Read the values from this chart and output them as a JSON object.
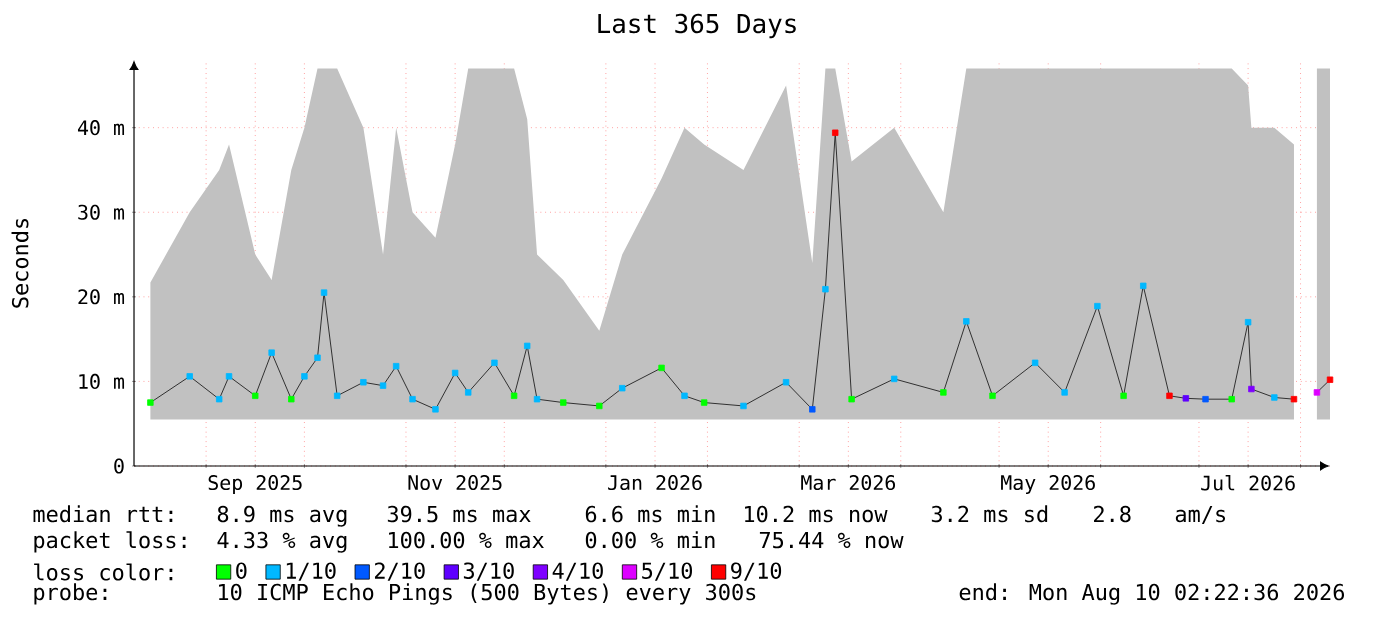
{
  "chart_data": {
    "type": "line",
    "title": "Last 365 Days",
    "ylabel": "Seconds",
    "x": [
      "2025-08-15",
      "2025-08-27",
      "2025-09-05",
      "2025-09-08",
      "2025-09-16",
      "2025-09-21",
      "2025-09-27",
      "2025-10-01",
      "2025-10-05",
      "2025-10-07",
      "2025-10-11",
      "2025-10-19",
      "2025-10-25",
      "2025-10-29",
      "2025-11-03",
      "2025-11-10",
      "2025-11-16",
      "2025-11-20",
      "2025-11-28",
      "2025-12-04",
      "2025-12-08",
      "2025-12-11",
      "2025-12-19",
      "2025-12-30",
      "2026-01-06",
      "2026-01-18",
      "2026-01-25",
      "2026-01-31",
      "2026-02-12",
      "2026-02-25",
      "2026-03-05",
      "2026-03-09",
      "2026-03-12",
      "2026-03-17",
      "2026-03-30",
      "2026-04-14",
      "2026-04-21",
      "2026-04-29",
      "2026-05-12",
      "2026-05-21",
      "2026-05-31",
      "2026-06-08",
      "2026-06-14",
      "2026-06-22",
      "2026-06-27",
      "2026-07-03",
      "2026-07-11",
      "2026-07-16",
      "2026-07-17",
      "2026-07-24",
      "2026-07-30",
      "2026-08-02",
      "2026-08-06",
      "2026-08-10"
    ],
    "series": [
      {
        "color": "#303030",
        "values": [
          7.5,
          10.6,
          7.9,
          10.6,
          8.3,
          13.4,
          7.9,
          10.6,
          12.8,
          20.5,
          8.3,
          9.9,
          9.5,
          11.8,
          7.9,
          6.7,
          11,
          8.7,
          12.2,
          8.3,
          14.2,
          7.9,
          7.5,
          7.1,
          9.2,
          11.6,
          8.3,
          7.5,
          7.1,
          9.9,
          6.7,
          20.9,
          39.4,
          7.9,
          10.3,
          8.7,
          17.1,
          8.3,
          12.2,
          8.7,
          18.9,
          8.3,
          21.3,
          8.3,
          8,
          7.9,
          7.9,
          17,
          9.1,
          8.1,
          7.9,
          null,
          8.7,
          10.2
        ],
        "lower": [
          5.5,
          5.5,
          5.5,
          5.5,
          5.5,
          5.5,
          5.5,
          5.5,
          5.5,
          5.5,
          5.5,
          5.5,
          5.5,
          5.5,
          5.5,
          5.5,
          5.5,
          5.5,
          5.5,
          5.5,
          5.5,
          5.5,
          5.5,
          5.5,
          5.5,
          5.5,
          5.5,
          5.5,
          5.5,
          5.5,
          5.5,
          5.5,
          5.5,
          5.5,
          5.5,
          5.5,
          5.5,
          5.5,
          5.5,
          5.5,
          5.5,
          5.5,
          5.5,
          5.5,
          5.5,
          5.5,
          5.5,
          5.5,
          5.5,
          5.5,
          5.5,
          null,
          5.5,
          5.5
        ],
        "upper": [
          21.7,
          30,
          35,
          38,
          25,
          22,
          35,
          40,
          47,
          47,
          47,
          40,
          25,
          40,
          30,
          27,
          38,
          47,
          47,
          47,
          41,
          25,
          22,
          16,
          25,
          34,
          40,
          38,
          35,
          45,
          24,
          47,
          47,
          36,
          40,
          30,
          47,
          47,
          47,
          47,
          47,
          47,
          47,
          47,
          47,
          47,
          47,
          45,
          40,
          40,
          38,
          null,
          47,
          47
        ]
      },
      {
        "type": "scatter",
        "marker": "square",
        "name": "0",
        "color": "#00ff00",
        "x": [
          "2025-08-15",
          "2025-09-16",
          "2025-09-27",
          "2025-12-04",
          "2025-12-19",
          "2025-12-30",
          "2026-01-18",
          "2026-01-31",
          "2026-03-17",
          "2026-04-14",
          "2026-04-29",
          "2026-06-08",
          "2026-07-11"
        ],
        "values": [
          7.5,
          8.3,
          7.9,
          8.3,
          7.5,
          7.1,
          11.6,
          7.5,
          7.9,
          8.7,
          8.3,
          8.3,
          7.9
        ]
      },
      {
        "type": "scatter",
        "marker": "square",
        "name": "1/10",
        "color": "#00b8ff",
        "x": [
          "2025-08-27",
          "2025-09-05",
          "2025-09-08",
          "2025-09-21",
          "2025-10-01",
          "2025-10-05",
          "2025-10-07",
          "2025-10-11",
          "2025-10-19",
          "2025-10-25",
          "2025-10-29",
          "2025-11-03",
          "2025-11-10",
          "2025-11-16",
          "2025-11-20",
          "2025-11-28",
          "2025-12-08",
          "2025-12-11",
          "2026-01-06",
          "2026-01-25",
          "2026-02-12",
          "2026-02-25",
          "2026-03-09",
          "2026-03-30",
          "2026-04-21",
          "2026-05-12",
          "2026-05-21",
          "2026-05-31",
          "2026-06-14",
          "2026-07-16",
          "2026-07-24"
        ],
        "values": [
          10.6,
          7.9,
          10.6,
          13.4,
          10.6,
          12.8,
          20.5,
          8.3,
          9.9,
          9.5,
          11.8,
          7.9,
          6.7,
          11,
          8.7,
          12.2,
          14.2,
          7.9,
          9.2,
          8.3,
          7.1,
          9.9,
          20.9,
          10.3,
          17.1,
          12.2,
          8.7,
          18.9,
          21.3,
          17,
          8.1
        ]
      },
      {
        "type": "scatter",
        "marker": "square",
        "name": "2/10",
        "color": "#0059ff",
        "x": [
          "2026-03-05",
          "2026-07-03"
        ],
        "values": [
          6.7,
          7.9
        ]
      },
      {
        "type": "scatter",
        "marker": "square",
        "name": "3/10",
        "color": "#5e00ff",
        "x": [
          "2026-06-27"
        ],
        "values": [
          8
        ]
      },
      {
        "type": "scatter",
        "marker": "square",
        "name": "4/10",
        "color": "#7e00ff",
        "x": [
          "2026-07-17"
        ],
        "values": [
          9.1
        ]
      },
      {
        "type": "scatter",
        "marker": "square",
        "name": "5/10",
        "color": "#dd00ff",
        "x": [
          "2026-08-06"
        ],
        "values": [
          8.7
        ]
      },
      {
        "type": "scatter",
        "marker": "square",
        "name": "9/10",
        "color": "#ff0000",
        "x": [
          "2026-03-12",
          "2026-06-22",
          "2026-07-30",
          "2026-08-10"
        ],
        "values": [
          39.4,
          8.3,
          7.9,
          10.2
        ]
      }
    ],
    "xlim": [
      "2025-08-10",
      "2026-08-10"
    ],
    "xticks": [
      {
        "value": "2025-09-01",
        "label": null
      },
      {
        "value": "2025-09-16",
        "label": "Sep 2025"
      },
      {
        "value": "2025-10-01",
        "label": null
      },
      {
        "value": "2025-11-01",
        "label": null
      },
      {
        "value": "2025-11-16",
        "label": "Nov 2025"
      },
      {
        "value": "2025-12-01",
        "label": null
      },
      {
        "value": "2026-01-01",
        "label": null
      },
      {
        "value": "2026-01-16",
        "label": "Jan 2026"
      },
      {
        "value": "2026-02-01",
        "label": null
      },
      {
        "value": "2026-03-01",
        "label": null
      },
      {
        "value": "2026-03-16",
        "label": "Mar 2026"
      },
      {
        "value": "2026-04-01",
        "label": null
      },
      {
        "value": "2026-05-01",
        "label": null
      },
      {
        "value": "2026-05-16",
        "label": "May 2026"
      },
      {
        "value": "2026-06-01",
        "label": null
      },
      {
        "value": "2026-07-01",
        "label": null
      },
      {
        "value": "2026-07-16",
        "label": "Jul 2026"
      },
      {
        "value": "2026-08-01",
        "label": null
      }
    ],
    "ylim": [
      0,
      48
    ],
    "yticks": [
      0,
      {
        "value": 10,
        "label": "10 m"
      },
      {
        "value": 20,
        "label": "20 m"
      },
      {
        "value": 30,
        "label": "30 m"
      },
      {
        "value": 40,
        "label": "40 m"
      }
    ],
    "grid": true,
    "legend": "bottom",
    "legend_title": "loss color:",
    "annotations": [
      "median rtt:",
      "8.9 ms avg",
      "39.5 ms max",
      "6.6 ms min",
      "10.2 ms now",
      "3.2 ms sd",
      "2.8",
      "am/s",
      "packet loss:",
      "4.33 % avg",
      "100.00 % max",
      "0.00 % min",
      "75.44 % now",
      "probe:",
      "10 ICMP Echo Pings (500 Bytes) every 300s",
      "end: Mon Aug 10 02:22:36 2026"
    ]
  }
}
